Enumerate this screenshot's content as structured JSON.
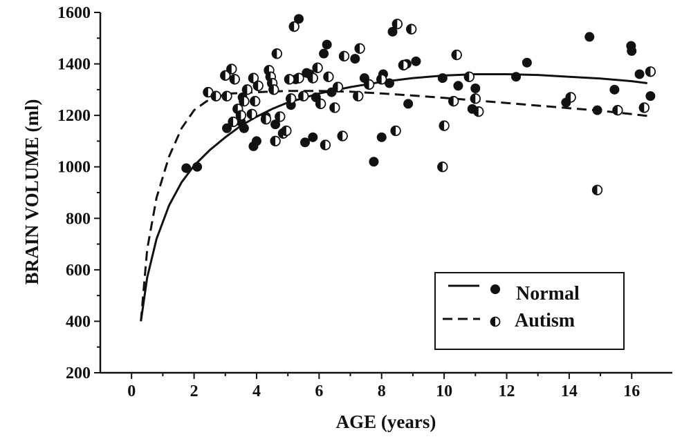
{
  "chart_data": {
    "type": "scatter",
    "title": "",
    "xlabel": "AGE (years)",
    "ylabel": "BRAIN VOLUME (ml)",
    "xlim": [
      -1,
      17.3
    ],
    "ylim": [
      200,
      1600
    ],
    "xticks": [
      0,
      2,
      4,
      6,
      8,
      10,
      12,
      14,
      16
    ],
    "yticks": [
      200,
      400,
      600,
      800,
      1000,
      1200,
      1400,
      1600
    ],
    "grid": false,
    "legend": "bottom-right",
    "series": [
      {
        "name": "Normal",
        "marker": "filled-circle",
        "line": "solid",
        "color": "#111111",
        "points": [
          [
            1.75,
            995
          ],
          [
            2.1,
            1000
          ],
          [
            3.05,
            1150
          ],
          [
            3.5,
            1175
          ],
          [
            3.55,
            1270
          ],
          [
            3.6,
            1150
          ],
          [
            3.9,
            1080
          ],
          [
            4.0,
            1100
          ],
          [
            4.3,
            1195
          ],
          [
            4.6,
            1165
          ],
          [
            5.1,
            1240
          ],
          [
            5.25,
            1340
          ],
          [
            5.35,
            1575
          ],
          [
            5.55,
            1095
          ],
          [
            5.6,
            1365
          ],
          [
            5.7,
            1360
          ],
          [
            5.8,
            1115
          ],
          [
            5.9,
            1270
          ],
          [
            6.15,
            1440
          ],
          [
            6.25,
            1475
          ],
          [
            6.4,
            1290
          ],
          [
            7.15,
            1420
          ],
          [
            7.45,
            1345
          ],
          [
            7.75,
            1020
          ],
          [
            8.0,
            1115
          ],
          [
            8.05,
            1360
          ],
          [
            8.25,
            1325
          ],
          [
            8.35,
            1525
          ],
          [
            8.8,
            1400
          ],
          [
            8.85,
            1245
          ],
          [
            9.1,
            1410
          ],
          [
            9.95,
            1345
          ],
          [
            10.45,
            1315
          ],
          [
            10.9,
            1225
          ],
          [
            11.0,
            1305
          ],
          [
            12.3,
            1350
          ],
          [
            12.65,
            1405
          ],
          [
            13.9,
            1250
          ],
          [
            14.65,
            1505
          ],
          [
            14.9,
            1220
          ],
          [
            15.45,
            1300
          ],
          [
            15.98,
            1470
          ],
          [
            16.0,
            1450
          ],
          [
            16.25,
            1360
          ],
          [
            16.6,
            1275
          ]
        ],
        "fit": [
          [
            0.3,
            400
          ],
          [
            0.5,
            570
          ],
          [
            0.8,
            720
          ],
          [
            1.2,
            850
          ],
          [
            1.6,
            940
          ],
          [
            2.0,
            1005
          ],
          [
            2.5,
            1065
          ],
          [
            3.0,
            1115
          ],
          [
            3.5,
            1160
          ],
          [
            4.0,
            1195
          ],
          [
            4.5,
            1225
          ],
          [
            5.0,
            1250
          ],
          [
            6.0,
            1285
          ],
          [
            7.0,
            1310
          ],
          [
            8.0,
            1330
          ],
          [
            9.0,
            1345
          ],
          [
            10.0,
            1355
          ],
          [
            11.0,
            1360
          ],
          [
            12.0,
            1360
          ],
          [
            13.0,
            1357
          ],
          [
            14.0,
            1350
          ],
          [
            15.0,
            1343
          ],
          [
            16.0,
            1333
          ],
          [
            16.5,
            1325
          ]
        ]
      },
      {
        "name": "Autism",
        "marker": "half-filled-circle",
        "line": "dashed",
        "color": "#111111",
        "points": [
          [
            2.45,
            1290
          ],
          [
            2.7,
            1275
          ],
          [
            3.0,
            1355
          ],
          [
            3.05,
            1275
          ],
          [
            3.2,
            1380
          ],
          [
            3.25,
            1175
          ],
          [
            3.3,
            1340
          ],
          [
            3.4,
            1225
          ],
          [
            3.5,
            1200
          ],
          [
            3.6,
            1255
          ],
          [
            3.7,
            1300
          ],
          [
            3.85,
            1205
          ],
          [
            3.9,
            1345
          ],
          [
            3.95,
            1255
          ],
          [
            4.05,
            1315
          ],
          [
            4.3,
            1185
          ],
          [
            4.4,
            1375
          ],
          [
            4.45,
            1350
          ],
          [
            4.5,
            1325
          ],
          [
            4.55,
            1300
          ],
          [
            4.6,
            1100
          ],
          [
            4.65,
            1440
          ],
          [
            4.75,
            1195
          ],
          [
            4.85,
            1130
          ],
          [
            4.95,
            1140
          ],
          [
            5.05,
            1340
          ],
          [
            5.1,
            1265
          ],
          [
            5.2,
            1545
          ],
          [
            5.35,
            1345
          ],
          [
            5.5,
            1275
          ],
          [
            5.8,
            1345
          ],
          [
            5.95,
            1385
          ],
          [
            6.05,
            1245
          ],
          [
            6.2,
            1085
          ],
          [
            6.3,
            1350
          ],
          [
            6.5,
            1230
          ],
          [
            6.6,
            1310
          ],
          [
            6.75,
            1120
          ],
          [
            6.8,
            1430
          ],
          [
            7.25,
            1275
          ],
          [
            7.3,
            1460
          ],
          [
            7.6,
            1320
          ],
          [
            8.0,
            1340
          ],
          [
            8.45,
            1140
          ],
          [
            8.5,
            1555
          ],
          [
            8.7,
            1395
          ],
          [
            8.95,
            1535
          ],
          [
            9.95,
            1000
          ],
          [
            10.0,
            1160
          ],
          [
            10.3,
            1255
          ],
          [
            10.4,
            1435
          ],
          [
            10.8,
            1350
          ],
          [
            11.0,
            1265
          ],
          [
            11.1,
            1215
          ],
          [
            14.05,
            1270
          ],
          [
            14.9,
            910
          ],
          [
            15.55,
            1220
          ],
          [
            16.4,
            1230
          ],
          [
            16.6,
            1370
          ]
        ],
        "fit": [
          [
            0.3,
            400
          ],
          [
            0.5,
            680
          ],
          [
            0.8,
            880
          ],
          [
            1.2,
            1040
          ],
          [
            1.6,
            1150
          ],
          [
            2.0,
            1220
          ],
          [
            2.4,
            1255
          ],
          [
            2.8,
            1275
          ],
          [
            3.2,
            1285
          ],
          [
            4.0,
            1290
          ],
          [
            5.0,
            1295
          ],
          [
            6.0,
            1295
          ],
          [
            7.0,
            1292
          ],
          [
            8.0,
            1285
          ],
          [
            9.0,
            1277
          ],
          [
            10.0,
            1268
          ],
          [
            11.0,
            1258
          ],
          [
            12.0,
            1248
          ],
          [
            13.0,
            1238
          ],
          [
            14.0,
            1228
          ],
          [
            15.0,
            1218
          ],
          [
            16.0,
            1205
          ],
          [
            16.5,
            1198
          ]
        ]
      }
    ]
  }
}
